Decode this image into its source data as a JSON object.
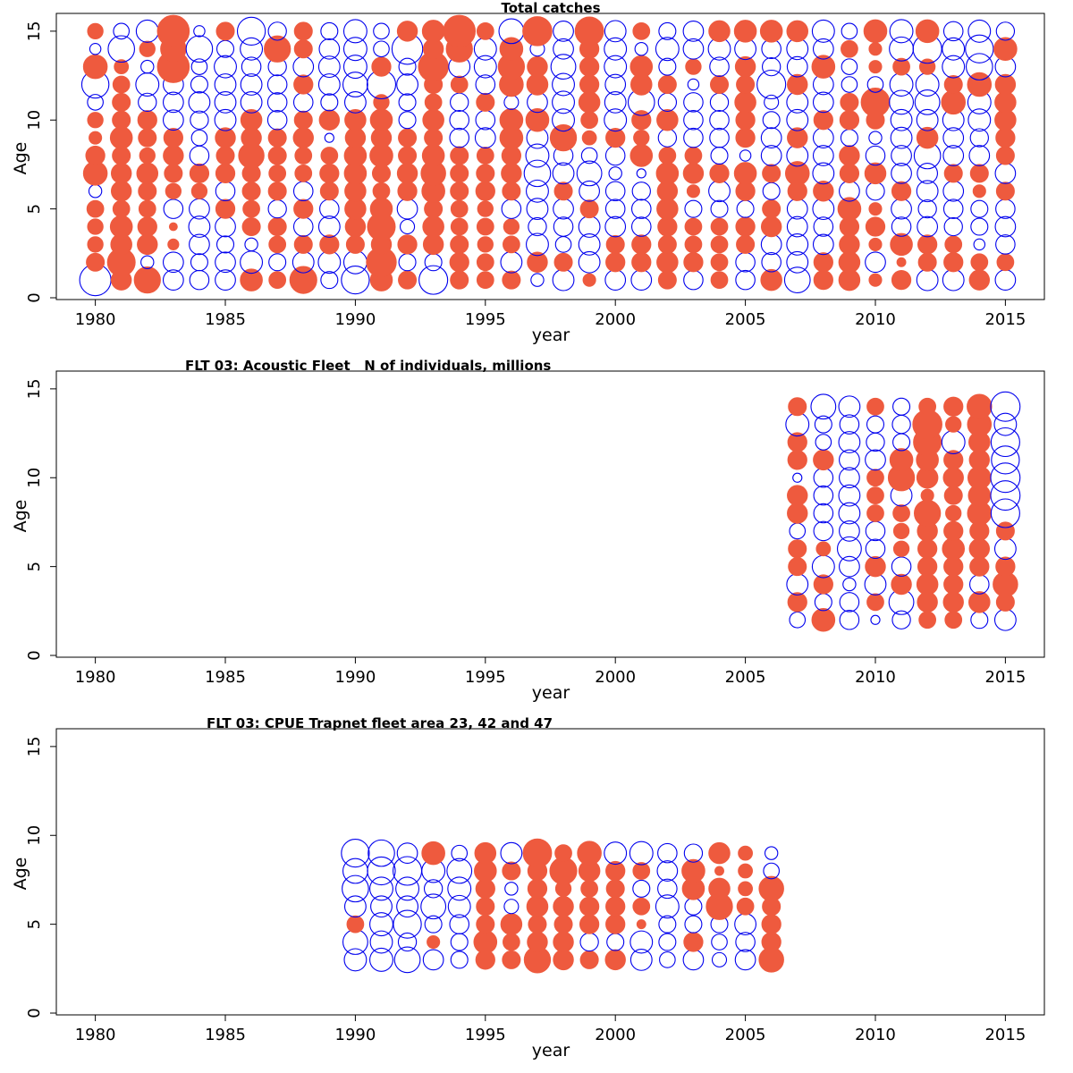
{
  "colors": {
    "positive": "#ee5a3e",
    "negative": "#0000ee",
    "axis": "#000000"
  },
  "chart_data": [
    {
      "type": "scatter",
      "title": "Total catches",
      "xlabel": "year",
      "ylabel": "Age",
      "xlim": [
        1978.5,
        2016.5
      ],
      "ylim": [
        -0.1,
        16
      ],
      "xticks": [
        1980,
        1985,
        1990,
        1995,
        2000,
        2005,
        2010,
        2015
      ],
      "yticks": [
        0,
        5,
        10,
        15
      ],
      "years": [
        1980,
        1981,
        1982,
        1983,
        1984,
        1985,
        1986,
        1987,
        1988,
        1989,
        1990,
        1991,
        1992,
        1993,
        1994,
        1995,
        1996,
        1997,
        1998,
        1999,
        2000,
        2001,
        2002,
        2003,
        2004,
        2005,
        2006,
        2007,
        2008,
        2009,
        2010,
        2011,
        2012,
        2013,
        2014,
        2015
      ],
      "ages": [
        1,
        2,
        3,
        4,
        5,
        6,
        7,
        8,
        9,
        10,
        11,
        12,
        13,
        14,
        15
      ],
      "residuals": [
        [
          -1.2,
          0.4,
          0.3,
          0.3,
          0.35,
          -0.2,
          0.7,
          0.45,
          0.2,
          0.3,
          -0.3,
          -0.9,
          0.7,
          -0.15,
          0.3
        ],
        [
          0.5,
          0.95,
          0.55,
          0.6,
          0.35,
          0.5,
          0.5,
          0.4,
          0.6,
          0.4,
          0.4,
          0.35,
          0.25,
          -0.85,
          -0.3
        ],
        [
          0.85,
          -0.2,
          0.5,
          0.45,
          0.35,
          0.4,
          0.55,
          0.3,
          0.4,
          0.45,
          -0.4,
          -0.65,
          -0.2,
          0.3,
          -0.6
        ],
        [
          -0.5,
          -0.5,
          0.15,
          0.08,
          -0.45,
          0.3,
          0.4,
          0.5,
          0.45,
          -0.5,
          -0.5,
          -0.5,
          1.25,
          0.8,
          1.25
        ],
        [
          -0.45,
          -0.35,
          -0.5,
          -0.55,
          -0.5,
          0.3,
          0.45,
          -0.45,
          -0.3,
          -0.4,
          -0.55,
          -0.35,
          -0.3,
          -0.85,
          -0.15
        ],
        [
          -0.5,
          -0.5,
          -0.35,
          -0.5,
          0.45,
          -0.45,
          0.45,
          0.4,
          0.5,
          -0.55,
          -0.55,
          -0.55,
          -0.6,
          -0.35,
          0.4
        ],
        [
          0.6,
          -0.6,
          -0.2,
          0.4,
          0.35,
          0.4,
          0.4,
          0.8,
          0.5,
          0.55,
          -0.55,
          -0.55,
          -0.45,
          -0.6,
          -0.95
        ],
        [
          0.35,
          -0.35,
          0.35,
          0.4,
          -0.4,
          0.4,
          0.35,
          0.4,
          0.4,
          -0.45,
          -0.45,
          -0.45,
          -0.4,
          0.85,
          -0.4
        ],
        [
          0.9,
          -0.55,
          0.4,
          -0.45,
          0.45,
          -0.45,
          0.35,
          0.35,
          0.5,
          0.4,
          -0.45,
          0.45,
          -0.5,
          0.4,
          0.4
        ],
        [
          -0.35,
          -0.6,
          0.45,
          -0.55,
          -0.45,
          0.4,
          0.45,
          0.35,
          -0.1,
          0.5,
          -0.35,
          -0.55,
          -0.55,
          -0.5,
          -0.35
        ],
        [
          -0.95,
          -0.65,
          0.4,
          0.5,
          0.55,
          0.55,
          0.6,
          0.6,
          0.5,
          0.55,
          -0.55,
          -0.75,
          -0.65,
          -0.65,
          -0.65
        ],
        [
          0.6,
          1.1,
          0.5,
          0.95,
          0.6,
          0.35,
          0.4,
          0.65,
          0.5,
          0.6,
          0.3,
          -1.0,
          0.45,
          -0.3,
          -0.3
        ],
        [
          0.4,
          -0.35,
          0.45,
          -0.25,
          -0.5,
          0.45,
          0.5,
          0.4,
          0.4,
          -0.35,
          -0.35,
          -0.55,
          -0.35,
          -1.15,
          0.5
        ],
        [
          -1.0,
          -0.35,
          0.5,
          0.55,
          0.4,
          0.65,
          0.75,
          0.6,
          0.4,
          0.55,
          0.35,
          0.4,
          1.1,
          0.5,
          0.6
        ],
        [
          0.4,
          0.45,
          0.4,
          0.35,
          0.35,
          0.4,
          0.4,
          0.4,
          -0.45,
          -0.45,
          -0.4,
          0.35,
          -0.55,
          0.85,
          1.25
        ],
        [
          0.35,
          0.35,
          0.3,
          0.35,
          0.3,
          0.45,
          0.4,
          0.35,
          -0.5,
          -0.45,
          0.4,
          -0.45,
          -0.6,
          -0.6,
          0.35
        ],
        [
          0.4,
          -0.55,
          0.35,
          0.3,
          -0.45,
          0.4,
          0.5,
          0.45,
          0.65,
          0.65,
          -0.25,
          0.7,
          0.85,
          0.65,
          -0.75
        ],
        [
          -0.2,
          0.5,
          -0.6,
          -0.4,
          -0.55,
          -0.6,
          -0.85,
          -0.65,
          -0.55,
          0.65,
          -0.5,
          0.55,
          0.5,
          -0.25,
          1.05
        ],
        [
          -0.55,
          0.4,
          -0.3,
          -0.45,
          -0.5,
          0.4,
          -0.55,
          -0.45,
          0.85,
          -0.6,
          -0.6,
          -0.6,
          -0.75,
          -0.5,
          -0.5
        ],
        [
          0.2,
          -0.55,
          -0.55,
          -0.55,
          0.4,
          -0.5,
          -0.75,
          -0.3,
          0.25,
          0.35,
          0.55,
          0.45,
          0.45,
          0.45,
          1.0
        ],
        [
          -0.5,
          0.45,
          0.4,
          -0.5,
          -0.45,
          -0.45,
          -0.2,
          -0.45,
          0.45,
          -0.6,
          -0.55,
          -0.5,
          -0.6,
          -0.6,
          -0.55
        ],
        [
          -0.5,
          0.45,
          0.45,
          -0.45,
          -0.45,
          -0.4,
          -0.1,
          0.6,
          0.3,
          0.45,
          -0.85,
          0.55,
          0.6,
          -0.2,
          0.35
        ],
        [
          0.4,
          0.55,
          0.4,
          0.45,
          0.55,
          0.5,
          0.6,
          0.35,
          -0.4,
          0.55,
          -0.4,
          0.4,
          -0.35,
          -0.65,
          -0.35
        ],
        [
          -0.45,
          0.45,
          0.35,
          0.35,
          -0.35,
          0.2,
          0.5,
          0.35,
          -0.45,
          -0.45,
          -0.45,
          -0.15,
          0.3,
          -0.5,
          -0.5
        ],
        [
          0.35,
          0.35,
          0.35,
          0.35,
          -0.35,
          -0.55,
          0.45,
          -0.35,
          -0.45,
          -0.45,
          -0.4,
          0.4,
          -0.45,
          -0.6,
          0.55
        ],
        [
          -0.45,
          -0.45,
          0.4,
          0.45,
          -0.35,
          0.45,
          0.6,
          -0.15,
          0.45,
          0.45,
          0.55,
          0.4,
          0.5,
          -0.55,
          0.6
        ],
        [
          0.55,
          -0.45,
          -0.5,
          0.5,
          0.4,
          -0.35,
          0.4,
          -0.5,
          -0.5,
          -0.35,
          -0.25,
          -1.0,
          -0.4,
          -0.45,
          0.6
        ],
        [
          -0.8,
          -0.55,
          -0.55,
          -0.5,
          -0.5,
          0.45,
          0.7,
          -0.55,
          0.5,
          -0.55,
          -0.55,
          0.5,
          -0.5,
          -0.55,
          0.55
        ],
        [
          0.45,
          0.45,
          -0.5,
          -0.45,
          -0.55,
          0.5,
          -0.55,
          -0.5,
          -0.5,
          0.45,
          -0.5,
          -0.5,
          0.65,
          -0.5,
          -0.6
        ],
        [
          0.55,
          0.55,
          0.5,
          0.45,
          0.65,
          -0.5,
          0.45,
          0.5,
          -0.35,
          0.45,
          0.4,
          -0.3,
          -0.3,
          0.35,
          -0.3
        ],
        [
          0.2,
          -0.5,
          0.2,
          0.45,
          0.2,
          -0.4,
          0.55,
          -0.45,
          -0.2,
          0.4,
          1.0,
          -0.3,
          0.2,
          0.2,
          0.65
        ],
        [
          0.45,
          0.1,
          0.6,
          -0.45,
          -0.5,
          0.45,
          -0.5,
          -0.5,
          -0.55,
          -0.55,
          -0.7,
          -0.65,
          0.35,
          -0.7,
          -0.65
        ],
        [
          -0.55,
          0.4,
          0.45,
          -0.5,
          -0.4,
          -0.55,
          -0.5,
          -0.85,
          0.55,
          -0.55,
          -0.75,
          -0.65,
          0.3,
          -1.0,
          0.65
        ],
        [
          -0.55,
          0.45,
          0.35,
          -0.4,
          -0.45,
          -0.5,
          0.4,
          -0.5,
          -0.5,
          -0.55,
          0.7,
          0.4,
          -0.6,
          -0.6,
          -0.45
        ],
        [
          0.5,
          0.35,
          -0.15,
          -0.35,
          -0.35,
          0.2,
          0.4,
          -0.5,
          -0.4,
          -0.6,
          -0.65,
          0.7,
          -0.85,
          -0.95,
          -0.6
        ],
        [
          -0.5,
          0.35,
          -0.45,
          -0.5,
          -0.45,
          0.4,
          -0.5,
          0.4,
          0.45,
          0.55,
          0.55,
          0.5,
          -0.5,
          0.65,
          -0.4
        ]
      ]
    },
    {
      "type": "scatter",
      "title": "FLT 03: Acoustic Fleet   N of individuals, millions",
      "xlabel": "year",
      "ylabel": "Age",
      "xlim": [
        1978.5,
        2016.5
      ],
      "ylim": [
        -0.1,
        16
      ],
      "xticks": [
        1980,
        1985,
        1990,
        1995,
        2000,
        2005,
        2010,
        2015
      ],
      "yticks": [
        0,
        5,
        10,
        15
      ],
      "years": [
        2007,
        2008,
        2009,
        2010,
        2011,
        2012,
        2013,
        2014,
        2015
      ],
      "ages": [
        2,
        3,
        4,
        5,
        6,
        7,
        8,
        9,
        10,
        11,
        12,
        13,
        14
      ],
      "residuals": [
        [
          -0.3,
          0.45,
          -0.55,
          0.4,
          0.4,
          -0.3,
          0.5,
          0.5,
          -0.1,
          0.45,
          0.45,
          -0.65,
          0.4
        ],
        [
          0.65,
          -0.35,
          0.45,
          -0.6,
          0.25,
          -0.45,
          -0.45,
          -0.45,
          -0.45,
          0.5,
          -0.3,
          -0.35,
          -0.75
        ],
        [
          -0.45,
          -0.45,
          -0.2,
          -0.5,
          -0.7,
          -0.5,
          -0.55,
          -0.55,
          -0.5,
          -0.5,
          -0.55,
          -0.45,
          -0.55
        ],
        [
          -0.1,
          0.35,
          -0.55,
          0.5,
          -0.45,
          -0.45,
          0.35,
          0.35,
          0.35,
          -0.5,
          -0.4,
          -0.35,
          0.35
        ],
        [
          -0.4,
          -0.75,
          0.5,
          -0.45,
          0.3,
          0.3,
          0.35,
          -0.55,
          0.85,
          0.65,
          -0.35,
          -0.4,
          -0.35
        ],
        [
          0.35,
          0.5,
          0.55,
          0.45,
          0.45,
          0.5,
          0.85,
          0.2,
          0.55,
          0.6,
          0.95,
          1.05,
          0.35
        ],
        [
          0.35,
          0.5,
          0.45,
          0.45,
          0.6,
          0.45,
          0.3,
          0.4,
          0.5,
          0.45,
          -0.65,
          0.3,
          0.45
        ],
        [
          -0.35,
          0.55,
          -0.45,
          0.45,
          0.5,
          0.45,
          0.7,
          0.6,
          0.65,
          0.5,
          0.55,
          0.7,
          0.75
        ],
        [
          -0.55,
          0.4,
          0.75,
          0.45,
          -0.55,
          0.4,
          -1.0,
          -1.05,
          -1.05,
          -0.95,
          -1.0,
          -0.6,
          -1.05
        ]
      ]
    },
    {
      "type": "scatter",
      "title": "FLT 03: CPUE Trapnet fleet area 23, 42 and 47",
      "xlabel": "year",
      "ylabel": "Age",
      "xlim": [
        1978.5,
        2016.5
      ],
      "ylim": [
        -0.1,
        16
      ],
      "xticks": [
        1980,
        1985,
        1990,
        1995,
        2000,
        2005,
        2010,
        2015
      ],
      "yticks": [
        0,
        5,
        10,
        15
      ],
      "years": [
        1990,
        1991,
        1992,
        1993,
        1994,
        1995,
        1996,
        1997,
        1998,
        1999,
        2000,
        2001,
        2002,
        2003,
        2004,
        2005,
        2006
      ],
      "ages": [
        3,
        4,
        5,
        6,
        7,
        8,
        9
      ],
      "residuals": [
        [
          -0.6,
          -0.75,
          0.35,
          -0.55,
          -0.85,
          -0.75,
          -0.95
        ],
        [
          -0.65,
          -0.6,
          -0.65,
          -0.55,
          -0.65,
          -0.95,
          -0.85
        ],
        [
          -0.8,
          -0.4,
          -0.95,
          -0.55,
          -0.65,
          -1.0,
          -0.5
        ],
        [
          -0.5,
          0.2,
          -0.35,
          -0.75,
          -0.4,
          -0.65,
          0.65
        ],
        [
          -0.35,
          -0.35,
          -0.45,
          -0.6,
          -0.65,
          -0.75,
          -0.3
        ],
        [
          0.45,
          0.65,
          0.4,
          0.4,
          0.45,
          0.6,
          0.55
        ],
        [
          0.4,
          0.35,
          0.55,
          -0.25,
          -0.2,
          0.4,
          -0.55
        ],
        [
          0.85,
          0.5,
          0.4,
          0.55,
          0.45,
          0.45,
          1.0
        ],
        [
          0.5,
          0.5,
          0.4,
          0.5,
          0.3,
          0.9,
          0.35
        ],
        [
          0.4,
          -0.4,
          0.45,
          0.45,
          0.35,
          0.55,
          0.7
        ],
        [
          0.5,
          -0.35,
          0.45,
          0.45,
          0.4,
          0.45,
          -0.6
        ],
        [
          -0.55,
          -0.6,
          0.1,
          0.35,
          -0.35,
          0.35,
          -0.65
        ],
        [
          -0.3,
          -0.35,
          -0.35,
          -0.65,
          -0.45,
          -0.5,
          -0.45
        ],
        [
          -0.5,
          0.45,
          -0.35,
          -0.35,
          0.6,
          0.65,
          -0.4
        ],
        [
          -0.25,
          -0.3,
          -0.35,
          0.85,
          0.55,
          0.1,
          0.55
        ],
        [
          -0.5,
          -0.45,
          -0.55,
          0.35,
          0.25,
          0.25,
          0.25
        ],
        [
          0.75,
          0.45,
          0.45,
          0.4,
          0.75,
          -0.3,
          -0.2
        ]
      ]
    }
  ]
}
